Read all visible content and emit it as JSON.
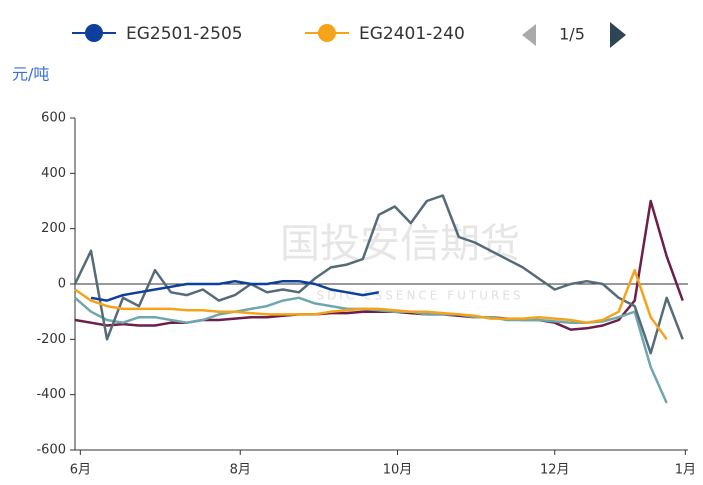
{
  "chart_data": {
    "type": "line",
    "y_label": "元/吨",
    "watermark": "国投安信期货",
    "watermark_sub": "SDIC ESSENCE FUTURES",
    "legend_page": "1/5",
    "x": [
      0,
      6,
      12,
      18,
      24,
      30,
      36,
      42,
      48,
      54,
      60,
      66,
      72,
      78,
      84,
      90,
      96,
      102,
      108,
      114,
      120,
      126,
      132,
      138,
      144,
      150,
      156,
      162,
      168,
      174,
      180,
      186,
      192,
      198,
      204,
      210,
      216,
      222,
      228
    ],
    "xlim": [
      0,
      230
    ],
    "xticks": [
      {
        "value": 2,
        "label": "6月"
      },
      {
        "value": 62,
        "label": "8月"
      },
      {
        "value": 121,
        "label": "10月"
      },
      {
        "value": 180,
        "label": "12月"
      },
      {
        "value": 229,
        "label": "1月"
      }
    ],
    "ylim": [
      -600,
      600
    ],
    "yticks": [
      -600,
      -400,
      -200,
      0,
      200,
      400,
      600
    ],
    "series": [
      {
        "name": "EG2501-2505",
        "color": "#0d3f9c",
        "values": [
          null,
          -50,
          -60,
          -40,
          -30,
          -20,
          -10,
          0,
          0,
          0,
          10,
          0,
          0,
          10,
          10,
          0,
          -20,
          -30,
          -40,
          -30,
          null,
          null,
          null,
          null,
          null,
          null,
          null,
          null,
          null,
          null,
          null,
          null,
          null,
          null,
          null,
          null,
          null,
          null,
          null
        ]
      },
      {
        "name": "EG2401-240",
        "color": "#f5a31a",
        "values": [
          -20,
          -60,
          -80,
          -90,
          -90,
          -90,
          -90,
          -95,
          -95,
          -100,
          -100,
          -105,
          -110,
          -110,
          -110,
          -110,
          -100,
          -95,
          -90,
          -90,
          -95,
          -100,
          -100,
          -105,
          -110,
          -115,
          -125,
          -125,
          -125,
          -120,
          -125,
          -130,
          -140,
          -130,
          -100,
          50,
          -120,
          -200,
          null
        ]
      },
      {
        "color": "#556b78",
        "values": [
          0,
          120,
          -200,
          -50,
          -80,
          50,
          -30,
          -40,
          -20,
          -60,
          -40,
          0,
          -30,
          -20,
          -30,
          20,
          60,
          70,
          90,
          250,
          280,
          220,
          300,
          320,
          170,
          150,
          120,
          90,
          60,
          20,
          -20,
          0,
          10,
          0,
          -50,
          -80,
          -250,
          -50,
          -200
        ]
      },
      {
        "color": "#6fa8ac",
        "values": [
          -50,
          -100,
          -130,
          -140,
          -120,
          -120,
          -130,
          -140,
          -130,
          -110,
          -100,
          -90,
          -80,
          -60,
          -50,
          -70,
          -80,
          -90,
          -90,
          -95,
          -100,
          -100,
          -110,
          -110,
          -110,
          -120,
          -120,
          -130,
          -130,
          -130,
          -135,
          -140,
          -140,
          -135,
          -120,
          -100,
          -300,
          -430,
          null
        ]
      },
      {
        "color": "#6b1f4a",
        "values": [
          -130,
          -140,
          -150,
          -145,
          -150,
          -150,
          -140,
          -140,
          -130,
          -130,
          -125,
          -120,
          -120,
          -115,
          -110,
          -110,
          -105,
          -105,
          -100,
          -100,
          -100,
          -105,
          -110,
          -110,
          -115,
          -120,
          -120,
          -125,
          -130,
          -130,
          -140,
          -165,
          -160,
          -150,
          -130,
          -60,
          300,
          100,
          -60
        ]
      }
    ]
  }
}
